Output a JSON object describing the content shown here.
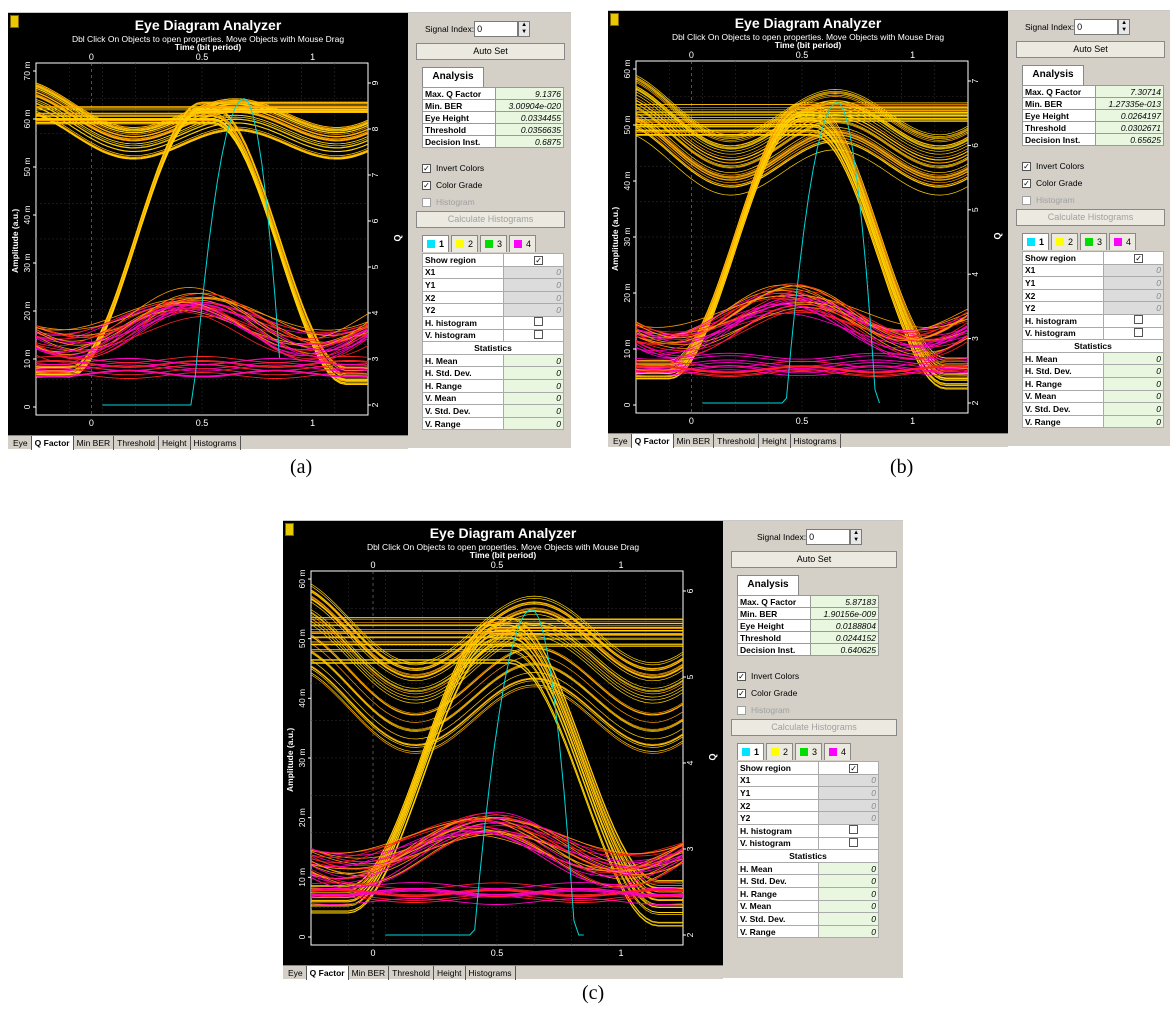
{
  "panels": [
    {
      "id": "a",
      "caption": "(a)",
      "app_title": "Eye Diagram Analyzer",
      "hint": "Dbl Click On Objects to open properties.  Move Objects with Mouse Drag",
      "time_label_top": "Time (bit period)",
      "time_label_bottom": "Time (bit period)",
      "y_label": "Amplitude (a.u.)",
      "q_label": "Q",
      "top_ticks": [
        "0",
        "0.5",
        "1"
      ],
      "bottom_ticks": [
        "0",
        "0.5",
        "1"
      ],
      "y_ticks": [
        "70 m",
        "60 m",
        "50 m",
        "40 m",
        "30 m",
        "20 m",
        "10 m",
        "0"
      ],
      "q_ticks": [
        "9",
        "8",
        "7",
        "6",
        "5",
        "4",
        "3",
        "2"
      ],
      "tabs": [
        "Eye",
        "Q Factor",
        "Min BER",
        "Threshold",
        "Height",
        "Histograms"
      ],
      "active_tab": "Q Factor",
      "signal_index_label": "Signal Index:",
      "signal_index_value": "0",
      "auto_set": "Auto Set",
      "analysis_tab": "Analysis",
      "analysis": [
        {
          "k": "Max. Q Factor",
          "v": "9.1376"
        },
        {
          "k": "Min. BER",
          "v": "3.00904e-020"
        },
        {
          "k": "Eye Height",
          "v": "0.0334455"
        },
        {
          "k": "Threshold",
          "v": "0.0356635"
        },
        {
          "k": "Decision Inst.",
          "v": "0.6875"
        }
      ],
      "q_curve": {
        "peak_time": 0.69,
        "peak_q": 9.1376,
        "q_range": [
          2,
          9.5
        ]
      }
    },
    {
      "id": "b",
      "caption": "(b)",
      "app_title": "Eye Diagram Analyzer",
      "hint": "Dbl Click On Objects to open properties.  Move Objects with Mouse Drag",
      "time_label_top": "Time (bit period)",
      "time_label_bottom": "Time (bit period)",
      "y_label": "Amplitude (a.u.)",
      "q_label": "Q",
      "top_ticks": [
        "0",
        "0.5",
        "1"
      ],
      "bottom_ticks": [
        "0",
        "0.5",
        "1"
      ],
      "y_ticks": [
        "60 m",
        "50 m",
        "40 m",
        "30 m",
        "20 m",
        "10 m",
        "0"
      ],
      "q_ticks": [
        "7",
        "6",
        "5",
        "4",
        "3",
        "2"
      ],
      "tabs": [
        "Eye",
        "Q Factor",
        "Min BER",
        "Threshold",
        "Height",
        "Histograms"
      ],
      "active_tab": "Q Factor",
      "signal_index_label": "Signal Index:",
      "signal_index_value": "0",
      "auto_set": "Auto Set",
      "analysis_tab": "Analysis",
      "analysis": [
        {
          "k": "Max. Q Factor",
          "v": "7.30714"
        },
        {
          "k": "Min. BER",
          "v": "1.27335e-013"
        },
        {
          "k": "Eye Height",
          "v": "0.0264197"
        },
        {
          "k": "Threshold",
          "v": "0.0302671"
        },
        {
          "k": "Decision Inst.",
          "v": "0.65625"
        }
      ],
      "q_curve": {
        "peak_time": 0.66,
        "peak_q": 7.30714,
        "q_range": [
          1.7,
          7.7
        ]
      }
    },
    {
      "id": "c",
      "caption": "(c)",
      "app_title": "Eye Diagram Analyzer",
      "hint": "Dbl Click On Objects to open properties.  Move Objects with Mouse Drag",
      "time_label_top": "Time (bit period)",
      "time_label_bottom": "Time (bit period)",
      "y_label": "Amplitude (a.u.)",
      "q_label": "Q",
      "top_ticks": [
        "0",
        "0.5",
        "1"
      ],
      "bottom_ticks": [
        "0",
        "0.5",
        "1"
      ],
      "y_ticks": [
        "60 m",
        "50 m",
        "40 m",
        "30 m",
        "20 m",
        "10 m",
        "0"
      ],
      "q_ticks": [
        "6",
        "5",
        "4",
        "3",
        "2"
      ],
      "tabs": [
        "Eye",
        "Q Factor",
        "Min BER",
        "Threshold",
        "Height",
        "Histograms"
      ],
      "active_tab": "Q Factor",
      "signal_index_label": "Signal Index:",
      "signal_index_value": "0",
      "auto_set": "Auto Set",
      "analysis_tab": "Analysis",
      "analysis": [
        {
          "k": "Max. Q Factor",
          "v": "5.87183"
        },
        {
          "k": "Min. BER",
          "v": "1.90156e-009"
        },
        {
          "k": "Eye Height",
          "v": "0.0188804"
        },
        {
          "k": "Threshold",
          "v": "0.0244152"
        },
        {
          "k": "Decision Inst.",
          "v": "0.640625"
        }
      ],
      "q_curve": {
        "peak_time": 0.64,
        "peak_q": 5.87183,
        "q_range": [
          1.8,
          6.1
        ]
      }
    }
  ],
  "options": {
    "invert_colors": "Invert Colors",
    "color_grade": "Color Grade",
    "histogram": "Histogram",
    "calc_hist": "Calculate Histograms"
  },
  "signal_tabs": [
    {
      "label": "1",
      "color": "#00e5ff"
    },
    {
      "label": "2",
      "color": "#ffff00"
    },
    {
      "label": "3",
      "color": "#00dd00"
    },
    {
      "label": "4",
      "color": "#ff00ff"
    }
  ],
  "region_rows": [
    {
      "k": "Show region",
      "type": "check",
      "checked": true
    },
    {
      "k": "X1",
      "v": "0"
    },
    {
      "k": "Y1",
      "v": "0"
    },
    {
      "k": "X2",
      "v": "0"
    },
    {
      "k": "Y2",
      "v": "0"
    },
    {
      "k": "H. histogram",
      "type": "check",
      "checked": false
    },
    {
      "k": "V. histogram",
      "type": "check",
      "checked": false
    }
  ],
  "statistics_header": "Statistics",
  "stat_rows": [
    {
      "k": "H. Mean",
      "v": "0"
    },
    {
      "k": "H. Std. Dev.",
      "v": "0"
    },
    {
      "k": "H. Range",
      "v": "0"
    },
    {
      "k": "V. Mean",
      "v": "0"
    },
    {
      "k": "V. Std. Dev.",
      "v": "0"
    },
    {
      "k": "V. Range",
      "v": "0"
    }
  ],
  "colors": {
    "trace_yellow": "#ffd200",
    "trace_orange": "#ff9a00",
    "trace_red": "#ff2020",
    "trace_magenta": "#ff00c8",
    "q_curve": "#00d8d8",
    "cell_green": "#e9f7e1"
  }
}
